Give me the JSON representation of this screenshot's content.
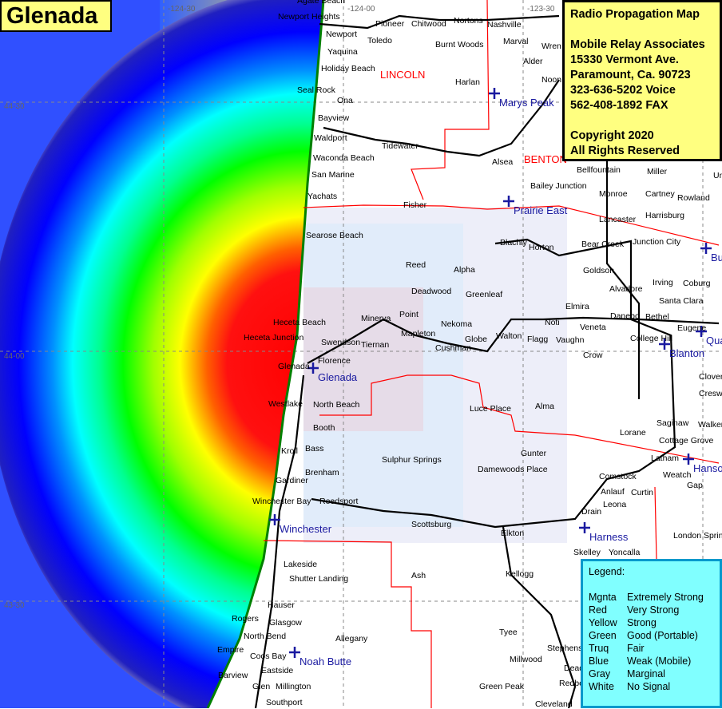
{
  "title": "Glenada",
  "info": {
    "heading": "Radio Propagation Map",
    "company": "Mobile Relay Associates",
    "address": "15330 Vermont Ave.",
    "city": "Paramount, Ca. 90723",
    "voice": "323-636-5202 Voice",
    "fax": "562-408-1892 FAX",
    "copyright": "Copyright 2020",
    "rights": "All Rights Reserved"
  },
  "legend": {
    "heading": "Legend:",
    "items": [
      {
        "color": "Mgnta",
        "meaning": "Extremely Strong",
        "hex": "#ff00ff"
      },
      {
        "color": "Red",
        "meaning": "Very Strong",
        "hex": "#ff0000"
      },
      {
        "color": "Yellow",
        "meaning": "Strong",
        "hex": "#ffff00"
      },
      {
        "color": "Green",
        "meaning": "Good (Portable)",
        "hex": "#00ff00"
      },
      {
        "color": "Truq",
        "meaning": "Fair",
        "hex": "#00ffff"
      },
      {
        "color": "Blue",
        "meaning": "Weak (Mobile)",
        "hex": "#0000ff"
      },
      {
        "color": "Gray",
        "meaning": "Marginal",
        "hex": "#a0a0a0"
      },
      {
        "color": "White",
        "meaning": "No Signal",
        "hex": "#ffffff"
      }
    ]
  },
  "grid_labels": {
    "lat": [
      "44-30",
      "44-00",
      "43-30"
    ],
    "lon": [
      "-124-30",
      "-124-00",
      "-123-30"
    ]
  },
  "counties": [
    "LINCOLN",
    "BENTON"
  ],
  "stations": [
    "Marys Peak",
    "Prairie East",
    "Glenada",
    "Winchester",
    "Noah Butte",
    "Harness",
    "Blanton",
    "Qua",
    "Hanso",
    "Bu"
  ],
  "places": [
    "Newport Heights",
    "Newport",
    "Toledo",
    "Yaquina",
    "Holiday Beach",
    "Seal Rock",
    "Ona",
    "Bayview",
    "Waldport",
    "Tidewater",
    "Waconda Beach",
    "San Marine",
    "Yachats",
    "Fisher",
    "Searose Beach",
    "Reed",
    "Alpha",
    "Deadwood",
    "Greenleaf",
    "Minerva",
    "Point",
    "Heceta Beach",
    "Heceta Junction",
    "Swendson",
    "Tiernan",
    "Mapleton",
    "Nekoma",
    "Cushman",
    "Glenada",
    "Florence",
    "Westlake",
    "North Beach",
    "Booth",
    "Bass",
    "Kroll",
    "Brenham",
    "Gardiner",
    "Winchester Bay",
    "Reedsport",
    "Lakeside",
    "Shutter Landing",
    "Hauser",
    "Rogers",
    "Glasgow",
    "North Bend",
    "Allegany",
    "Empire",
    "Coos Bay",
    "Eastside",
    "Barview",
    "Glen",
    "Millington",
    "Southport",
    "Scottsburg",
    "Elkton",
    "Ash",
    "Kellogg",
    "Tyee",
    "Millwood",
    "Stephens",
    "Green Peak",
    "Cleveland",
    "Deadw",
    "Redbe",
    "Pioneer",
    "Chitwood",
    "Nortons",
    "Nashville",
    "Marval",
    "Burnt Woods",
    "Wren",
    "Alder",
    "Harlan",
    "Noon",
    "Alsea",
    "Bellfountain",
    "Miller",
    "Bailey Junction",
    "Monroe",
    "Cartney",
    "Rowland",
    "Lancaster",
    "Harrisburg",
    "Blachly",
    "Horton",
    "Bear Creek",
    "Junction City",
    "Goldson",
    "Irving",
    "Alvadore",
    "Coburg",
    "Santa Clara",
    "Elmira",
    "Danebo",
    "Bethel",
    "Eugene",
    "Noti",
    "Veneta",
    "College Hill",
    "Walton",
    "Flagg",
    "Vaughn",
    "Crow",
    "Globe",
    "Clover",
    "Creswel",
    "Alma",
    "Luce Place",
    "Saginaw",
    "Walker",
    "Lorane",
    "Cottage Grove",
    "Gunter",
    "Latham",
    "Sulphur Springs",
    "Damewoods Place",
    "Comstock",
    "Weatch",
    "Gap",
    "Anlauf",
    "Curtin",
    "Leona",
    "Drain",
    "London Spring",
    "Skelley",
    "Yoncalla",
    "Uni",
    "Agate Beach"
  ]
}
